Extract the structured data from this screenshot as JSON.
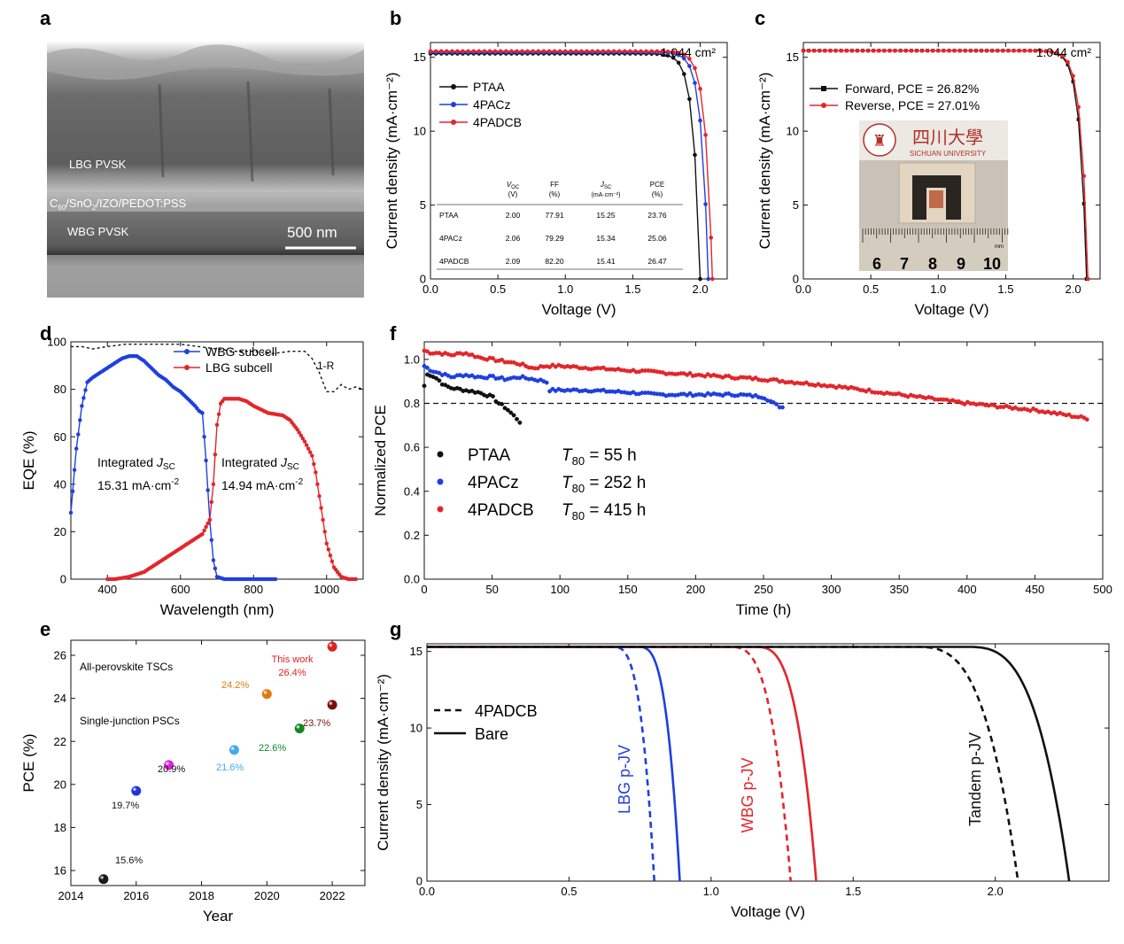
{
  "panel_labels": [
    "a",
    "b",
    "c",
    "d",
    "e",
    "f",
    "g"
  ],
  "colors": {
    "black": "#111111",
    "blue": "#1f3fe0",
    "red": "#e3262b",
    "sem_dark": "#3a3a3a",
    "sem_light": "#9a9a9a"
  },
  "panel_a": {
    "type": "image",
    "labels": {
      "lbg": "LBG PVSK",
      "ic_c": "C",
      "ic_60": "60",
      "ic_mid": "/SnO",
      "ic_2": "2",
      "ic_rest": "/IZO/PEDOT:PSS",
      "wbg": "WBG PVSK",
      "scale": "500 nm"
    }
  },
  "panel_c_photo": {
    "logo_chinese": "四川大學",
    "logo_english": "SICHUAN UNIVERSITY",
    "ruler_numbers": [
      "6",
      "7",
      "8",
      "9",
      "10"
    ],
    "ruler_unit": "mm"
  },
  "chart_data": [
    {
      "panel": "b",
      "type": "line",
      "xlabel": "Voltage (V)",
      "ylabel": "Current density (mA·cm⁻²)",
      "xlim": [
        0,
        2.2
      ],
      "ylim": [
        0,
        16
      ],
      "xticks": [
        "0.0",
        "0.5",
        "1.0",
        "1.5",
        "2.0"
      ],
      "yticks": [
        "0",
        "5",
        "10",
        "15"
      ],
      "annotation": "1.044 cm²",
      "series": [
        {
          "name": "PTAA",
          "color": "#111111",
          "jsc": 15.25,
          "voc": 2.0,
          "ff": 77.91,
          "pce": 23.76
        },
        {
          "name": "4PACz",
          "color": "#1f3fe0",
          "jsc": 15.34,
          "voc": 2.06,
          "ff": 79.29,
          "pce": 25.06
        },
        {
          "name": "4PADCB",
          "color": "#e3262b",
          "jsc": 15.41,
          "voc": 2.09,
          "ff": 82.2,
          "pce": 26.47
        }
      ],
      "table": {
        "headers": [
          [
            "V",
            "OC",
            "(V)"
          ],
          [
            "FF",
            "",
            "(%)"
          ],
          [
            "J",
            "SC",
            "(mA·cm⁻²)"
          ],
          [
            "PCE",
            "",
            "(%)"
          ]
        ],
        "rows": [
          [
            "PTAA",
            "2.00",
            "77.91",
            "15.25",
            "23.76"
          ],
          [
            "4PACz",
            "2.06",
            "79.29",
            "15.34",
            "25.06"
          ],
          [
            "4PADCB",
            "2.09",
            "82.20",
            "15.41",
            "26.47"
          ]
        ]
      }
    },
    {
      "panel": "c",
      "type": "line",
      "xlabel": "Voltage (V)",
      "ylabel": "Current density (mA·cm⁻²)",
      "xlim": [
        0,
        2.2
      ],
      "ylim": [
        0,
        16
      ],
      "xticks": [
        "0.0",
        "0.5",
        "1.0",
        "1.5",
        "2.0"
      ],
      "yticks": [
        "0",
        "5",
        "10",
        "15"
      ],
      "annotation": "1.044 cm²",
      "series": [
        {
          "name": "Forward, PCE = 26.82%",
          "color": "#111111",
          "jsc": 15.45,
          "voc": 2.1,
          "pce": 26.82
        },
        {
          "name": "Reverse, PCE = 27.01%",
          "color": "#e3262b",
          "jsc": 15.45,
          "voc": 2.11,
          "pce": 27.01
        }
      ]
    },
    {
      "panel": "d",
      "type": "line",
      "xlabel": "Wavelength (nm)",
      "ylabel": "EQE (%)",
      "xlim": [
        300,
        1100
      ],
      "ylim": [
        0,
        100
      ],
      "xticks": [
        "400",
        "600",
        "800",
        "1000"
      ],
      "yticks": [
        "0",
        "20",
        "40",
        "60",
        "80",
        "100"
      ],
      "series": [
        {
          "name": "WBG subcell",
          "color": "#1f3fe0",
          "x": [
            300,
            315,
            330,
            345,
            360,
            380,
            400,
            420,
            440,
            460,
            480,
            500,
            520,
            540,
            560,
            580,
            600,
            620,
            640,
            650,
            660,
            670,
            680,
            690,
            700,
            720,
            760,
            800,
            860
          ],
          "y": [
            28,
            55,
            73,
            83,
            85,
            87,
            89,
            91,
            93,
            94,
            94,
            92,
            89,
            86,
            84,
            81,
            79,
            76,
            73,
            71,
            70,
            50,
            25,
            8,
            1,
            0,
            0,
            0,
            0
          ]
        },
        {
          "name": "LBG subcell",
          "color": "#e3262b",
          "x": [
            400,
            420,
            440,
            460,
            480,
            500,
            520,
            540,
            560,
            580,
            600,
            620,
            640,
            660,
            680,
            690,
            700,
            710,
            720,
            740,
            760,
            780,
            800,
            840,
            880,
            900,
            920,
            940,
            960,
            970,
            980,
            990,
            1000,
            1020,
            1040,
            1060,
            1080
          ],
          "y": [
            0,
            0,
            0.5,
            1,
            2,
            3,
            5,
            7,
            9,
            11,
            13,
            15,
            17,
            19,
            25,
            40,
            65,
            74,
            76,
            76,
            76,
            75,
            73,
            70,
            69,
            67,
            63,
            58,
            52,
            45,
            35,
            25,
            15,
            5,
            1,
            0,
            0
          ]
        },
        {
          "name": "1-R",
          "color": "#111111",
          "dashed": true,
          "x": [
            300,
            330,
            360,
            400,
            450,
            500,
            550,
            600,
            650,
            700,
            750,
            800,
            850,
            900,
            940,
            960,
            980,
            1000,
            1020,
            1040,
            1060,
            1080,
            1100
          ],
          "y": [
            98,
            98,
            97,
            98,
            99,
            99,
            99,
            99,
            98,
            97,
            96,
            96,
            95,
            96,
            96,
            93,
            87,
            79,
            79,
            82,
            80,
            81,
            80
          ]
        }
      ],
      "annotations": [
        {
          "text_main": "Integrated ",
          "text_j": "J",
          "text_sub": "SC",
          "value": "15.31 mA·cm",
          "exp": "-2"
        },
        {
          "text_main": "Integrated ",
          "text_j": "J",
          "text_sub": "SC",
          "value": "14.94 mA·cm",
          "exp": "-2"
        }
      ]
    },
    {
      "panel": "e",
      "type": "scatter",
      "xlabel": "Year",
      "ylabel": "PCE (%)",
      "xlim": [
        2014,
        2023
      ],
      "ylim": [
        15.3,
        26.7
      ],
      "xticks": [
        "2014",
        "2016",
        "2018",
        "2020",
        "2022"
      ],
      "yticks": [
        "16",
        "18",
        "20",
        "22",
        "24",
        "26"
      ],
      "category_labels": [
        "All-perovskite TSCs",
        "Single-junction PSCs"
      ],
      "points": [
        {
          "x": 2015,
          "y": 15.6,
          "label": "15.6%",
          "color": "#1a1a1a"
        },
        {
          "x": 2016,
          "y": 19.7,
          "label": "19.7%",
          "color": "#2233dd"
        },
        {
          "x": 2017,
          "y": 20.9,
          "label": "20.9%",
          "color": "#dd22dd"
        },
        {
          "x": 2019,
          "y": 21.6,
          "label": "21.6%",
          "color": "#44aaee"
        },
        {
          "x": 2020,
          "y": 24.2,
          "label": "24.2%",
          "color": "#e07a10"
        },
        {
          "x": 2021,
          "y": 22.6,
          "label": "22.6%",
          "color": "#118822"
        },
        {
          "x": 2022,
          "y": 23.7,
          "label": "23.7%",
          "color": "#7a1010"
        },
        {
          "x": 2022,
          "y": 26.4,
          "label": "This work 26.4%",
          "color": "#dd2222"
        }
      ]
    },
    {
      "panel": "f",
      "type": "scatter",
      "xlabel": "Time (h)",
      "ylabel": "Normalized PCE",
      "xlim": [
        0,
        500
      ],
      "ylim": [
        0,
        1.08
      ],
      "xticks": [
        "0",
        "50",
        "100",
        "150",
        "200",
        "250",
        "300",
        "350",
        "400",
        "450",
        "500"
      ],
      "yticks": [
        "0.0",
        "0.2",
        "0.4",
        "0.6",
        "0.8",
        "1.0"
      ],
      "reference_line": 0.8,
      "series": [
        {
          "name": "PTAA",
          "t80": "55 h",
          "color": "#111111",
          "x": [
            0,
            2,
            5,
            10,
            15,
            20,
            30,
            40,
            45,
            50,
            55,
            60,
            65,
            70,
            72
          ],
          "y": [
            0.88,
            0.93,
            0.93,
            0.91,
            0.88,
            0.87,
            0.86,
            0.85,
            0.84,
            0.83,
            0.8,
            0.78,
            0.75,
            0.72,
            0.7
          ]
        },
        {
          "name": "4PACz",
          "t80": "252 h",
          "color": "#1f3fe0",
          "x": [
            0,
            5,
            10,
            20,
            30,
            40,
            50,
            60,
            70,
            80,
            90,
            92,
            100,
            120,
            150,
            170,
            200,
            230,
            250,
            260,
            265
          ],
          "y": [
            0.97,
            0.95,
            0.94,
            0.92,
            0.93,
            0.92,
            0.92,
            0.91,
            0.92,
            0.91,
            0.9,
            0.86,
            0.86,
            0.86,
            0.85,
            0.84,
            0.84,
            0.84,
            0.83,
            0.79,
            0.78
          ]
        },
        {
          "name": "4PADCB",
          "t80": "415 h",
          "color": "#e3262b",
          "x": [
            0,
            5,
            10,
            20,
            30,
            40,
            50,
            60,
            70,
            80,
            90,
            100,
            150,
            200,
            250,
            300,
            350,
            400,
            450,
            490
          ],
          "y": [
            1.04,
            1.03,
            1.03,
            1.02,
            1.03,
            1.01,
            1.0,
            0.99,
            0.98,
            0.96,
            0.97,
            0.97,
            0.95,
            0.93,
            0.91,
            0.88,
            0.84,
            0.8,
            0.77,
            0.73
          ]
        }
      ],
      "legend_prefix": "T",
      "legend_sub": "80",
      "legend_eq": " = "
    },
    {
      "panel": "g",
      "type": "line",
      "xlabel": "Voltage (V)",
      "ylabel": "Current density (mA·cm⁻²)",
      "xlim": [
        0,
        2.4
      ],
      "ylim": [
        0,
        15.5
      ],
      "xticks": [
        "0.0",
        "0.5",
        "1.0",
        "1.5",
        "2.0"
      ],
      "yticks": [
        "0",
        "5",
        "10",
        "15"
      ],
      "legend": [
        {
          "name": "4PADCB",
          "style": "dashed"
        },
        {
          "name": "Bare",
          "style": "solid"
        }
      ],
      "curve_labels": [
        {
          "text": "LBG p-JV",
          "color": "#1f3fe0"
        },
        {
          "text": "WBG p-JV",
          "color": "#e3262b"
        },
        {
          "text": "Tandem p-JV",
          "color": "#111111"
        }
      ],
      "series": [
        {
          "name": "LBG p-JV 4PADCB",
          "color": "#1f3fe0",
          "dashed": true,
          "jsc": 15.3,
          "voc": 0.8,
          "knee": 0.65
        },
        {
          "name": "LBG p-JV Bare",
          "color": "#1f3fe0",
          "dashed": false,
          "jsc": 15.3,
          "voc": 0.89,
          "knee": 0.74
        },
        {
          "name": "WBG p-JV 4PADCB",
          "color": "#e3262b",
          "dashed": true,
          "jsc": 15.3,
          "voc": 1.28,
          "knee": 1.06
        },
        {
          "name": "WBG p-JV Bare",
          "color": "#e3262b",
          "dashed": false,
          "jsc": 15.3,
          "voc": 1.37,
          "knee": 1.15
        },
        {
          "name": "Tandem p-JV 4PADCB",
          "color": "#111111",
          "dashed": true,
          "jsc": 15.3,
          "voc": 2.08,
          "knee": 1.71
        },
        {
          "name": "Tandem p-JV Bare",
          "color": "#111111",
          "dashed": false,
          "jsc": 15.3,
          "voc": 2.26,
          "knee": 1.89
        }
      ]
    }
  ]
}
